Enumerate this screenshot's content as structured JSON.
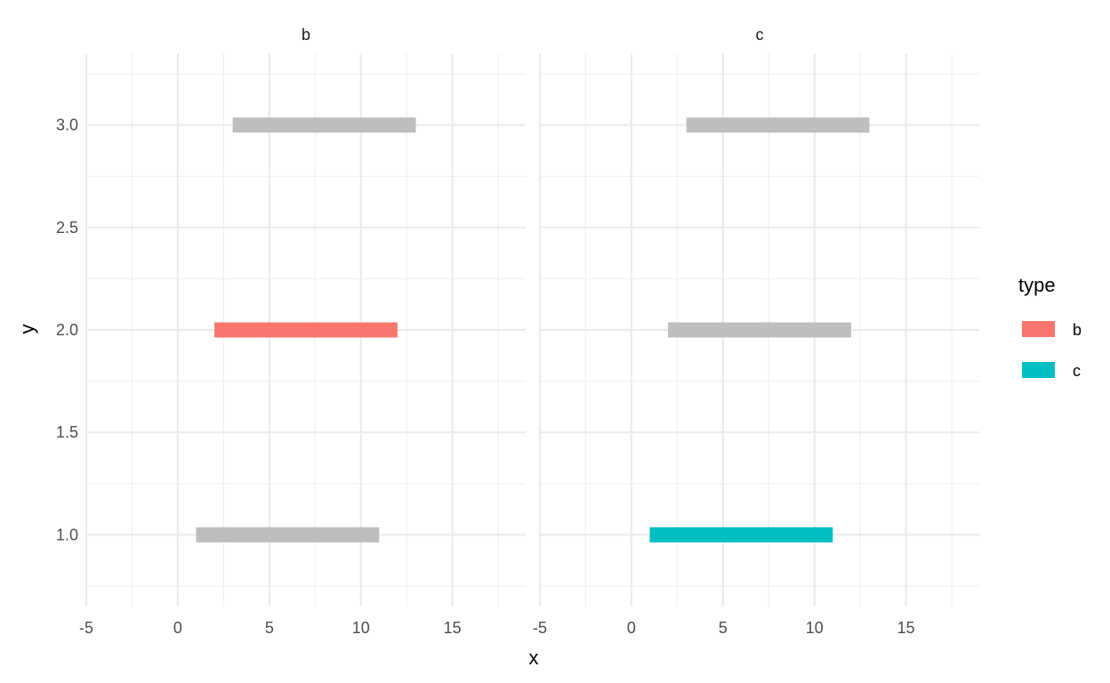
{
  "chart_data": {
    "type": "bar",
    "subtype": "horizontal-segments-faceted",
    "xlabel": "x",
    "ylabel": "y",
    "xlim": [
      -5,
      19
    ],
    "ylim": [
      0.65,
      3.35
    ],
    "x_ticks": [
      -5,
      0,
      5,
      10,
      15
    ],
    "x_tick_labels": [
      "-5",
      "0",
      "5",
      "10",
      "15"
    ],
    "y_ticks": [
      1.0,
      1.5,
      2.0,
      2.5,
      3.0
    ],
    "y_tick_labels": [
      "1.0",
      "1.5",
      "2.0",
      "2.5",
      "3.0"
    ],
    "grid": true,
    "legend": {
      "title": "type",
      "placement": "right",
      "entries": [
        {
          "label": "b",
          "color": "#F8766D"
        },
        {
          "label": "c",
          "color": "#00BFC4"
        }
      ]
    },
    "background_color": "#BEBEBE",
    "panels": [
      {
        "label": "b",
        "segments": [
          {
            "x_start": 1,
            "x_end": 11,
            "y": 1,
            "highlighted": false
          },
          {
            "x_start": 2,
            "x_end": 12,
            "y": 2,
            "highlighted": true,
            "type": "b",
            "color": "#F8766D"
          },
          {
            "x_start": 3,
            "x_end": 13,
            "y": 3,
            "highlighted": false
          }
        ]
      },
      {
        "label": "c",
        "segments": [
          {
            "x_start": 1,
            "x_end": 11,
            "y": 1,
            "highlighted": true,
            "type": "c",
            "color": "#00BFC4"
          },
          {
            "x_start": 2,
            "x_end": 12,
            "y": 2,
            "highlighted": false
          },
          {
            "x_start": 3,
            "x_end": 13,
            "y": 3,
            "highlighted": false
          }
        ]
      }
    ]
  }
}
